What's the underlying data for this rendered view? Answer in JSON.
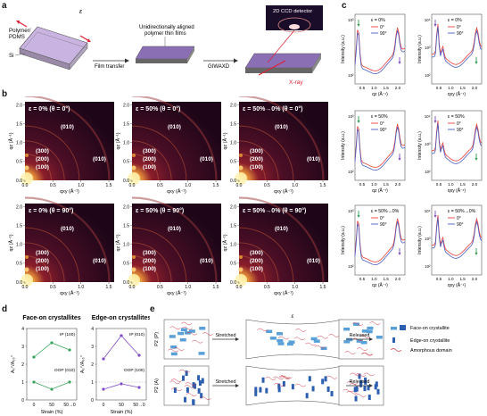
{
  "panels": {
    "a": "a",
    "b": "b",
    "c": "c",
    "d": "d",
    "e": "e"
  },
  "schematic": {
    "polymer_pdms": "Polymer/",
    "polymer_pdms2": "PDMS",
    "si": "Si",
    "epsilon": "ε",
    "aligned_film_1": "Unidirectionally aligned",
    "aligned_film_2": "polymer thin films",
    "film_transfer": "Film transfer",
    "giwaxd": "GIWAXD",
    "detector": "2D CCD detector",
    "xray": "X-ray"
  },
  "giwaxd_maps": [
    {
      "title": "ε = 0% (θ = 0°)",
      "peaks": [
        "(010)",
        "(300)",
        "(200)",
        "(100)",
        "(010)"
      ]
    },
    {
      "title": "ε = 50% (θ = 0°)",
      "peaks": [
        "(010)",
        "(300)",
        "(200)",
        "(100)",
        "(010)"
      ]
    },
    {
      "title": "ε = 50%→0% (θ = 0°)",
      "peaks": [
        "(010)",
        "(300)",
        "(200)",
        "(100)",
        "(010)"
      ]
    },
    {
      "title": "ε = 0% (θ = 90°)",
      "peaks": [
        "(010)",
        "(300)",
        "(200)",
        "(100)",
        "(010)"
      ]
    },
    {
      "title": "ε = 50% (θ = 90°)",
      "peaks": [
        "(010)",
        "(300)",
        "(200)",
        "(100)",
        "(010)"
      ]
    },
    {
      "title": "ε = 50%→0% (θ = 90°)",
      "peaks": [
        "(010)",
        "(300)",
        "(200)",
        "(100)",
        "(010)"
      ]
    }
  ],
  "map_axes": {
    "ylabel": "qz (Å⁻¹)",
    "xlabel": "qxy (Å⁻¹)",
    "yticks": [
      "0.0",
      "0.5",
      "1.0",
      "1.5",
      "2.0"
    ],
    "xticks": [
      "0.0",
      "0.5",
      "1.0",
      "1.5"
    ]
  },
  "line_profiles": {
    "ylabel": "Intensity (a.u.)",
    "xlabel_left": "qz (Å⁻¹)",
    "xlabel_right": "qxy (Å⁻¹)",
    "xticks_left": [
      "0.5",
      "1.0",
      "1.5",
      "2.0"
    ],
    "xticks_right": [
      "0.5",
      "1.0",
      "1.5",
      "2.0"
    ],
    "yticks_left": [
      "10³",
      "10²"
    ],
    "yticks_right": [
      "10⁴",
      "10³",
      "10²"
    ],
    "legend": [
      "0°",
      "90°"
    ],
    "series_colors": [
      "#e8413c",
      "#4a5bbf"
    ],
    "rows": [
      {
        "label": "ε = 0%"
      },
      {
        "label": "ε = 50%"
      },
      {
        "label": "ε = 50%→0%"
      }
    ]
  },
  "ratio_plots": {
    "face_on_title": "Face-on crystallites",
    "edge_on_title": "Edge-on crystallites",
    "ylabel": "A₀°/A₉₀°",
    "xlabel": "Strain (%)",
    "xticks": [
      "0",
      "50",
      "50→0"
    ],
    "yticks": [
      "0",
      "1",
      "2",
      "3",
      "4"
    ],
    "ip_label_face": "IP (100)",
    "oop_label_face": "OOP (010)",
    "ip_label_edge": "IP (010)",
    "oop_label_edge": "OOP (100)",
    "face_color": "#3aa35a",
    "edge_color": "#7e4bc4"
  },
  "chart_data": [
    {
      "type": "line",
      "title": "Face-on crystallites",
      "xlabel": "Strain (%)",
      "ylabel": "A0°/A90°",
      "categories": [
        "0",
        "50",
        "50→0"
      ],
      "series": [
        {
          "name": "IP (100)",
          "values": [
            2.4,
            3.2,
            2.8
          ]
        },
        {
          "name": "OOP (010)",
          "values": [
            1.0,
            0.6,
            1.0
          ]
        }
      ],
      "ylim": [
        0,
        4
      ]
    },
    {
      "type": "line",
      "title": "Edge-on crystallites",
      "xlabel": "Strain (%)",
      "ylabel": "A0°/A90°",
      "categories": [
        "0",
        "50",
        "50→0"
      ],
      "series": [
        {
          "name": "IP (010)",
          "values": [
            2.3,
            3.6,
            2.5
          ]
        },
        {
          "name": "OOP (100)",
          "values": [
            0.6,
            0.9,
            0.7
          ]
        }
      ],
      "ylim": [
        0,
        4
      ]
    }
  ],
  "morphology": {
    "row1_label": "P2 (P)",
    "row2_label": "P2 (A)",
    "stretched": "Stretched",
    "released": "Released",
    "epsilon": "ε",
    "legend_face_on": "Face-on crystallite",
    "legend_edge_on": "Edge-on crystallite",
    "legend_amorphous": "Amorphous domain"
  }
}
